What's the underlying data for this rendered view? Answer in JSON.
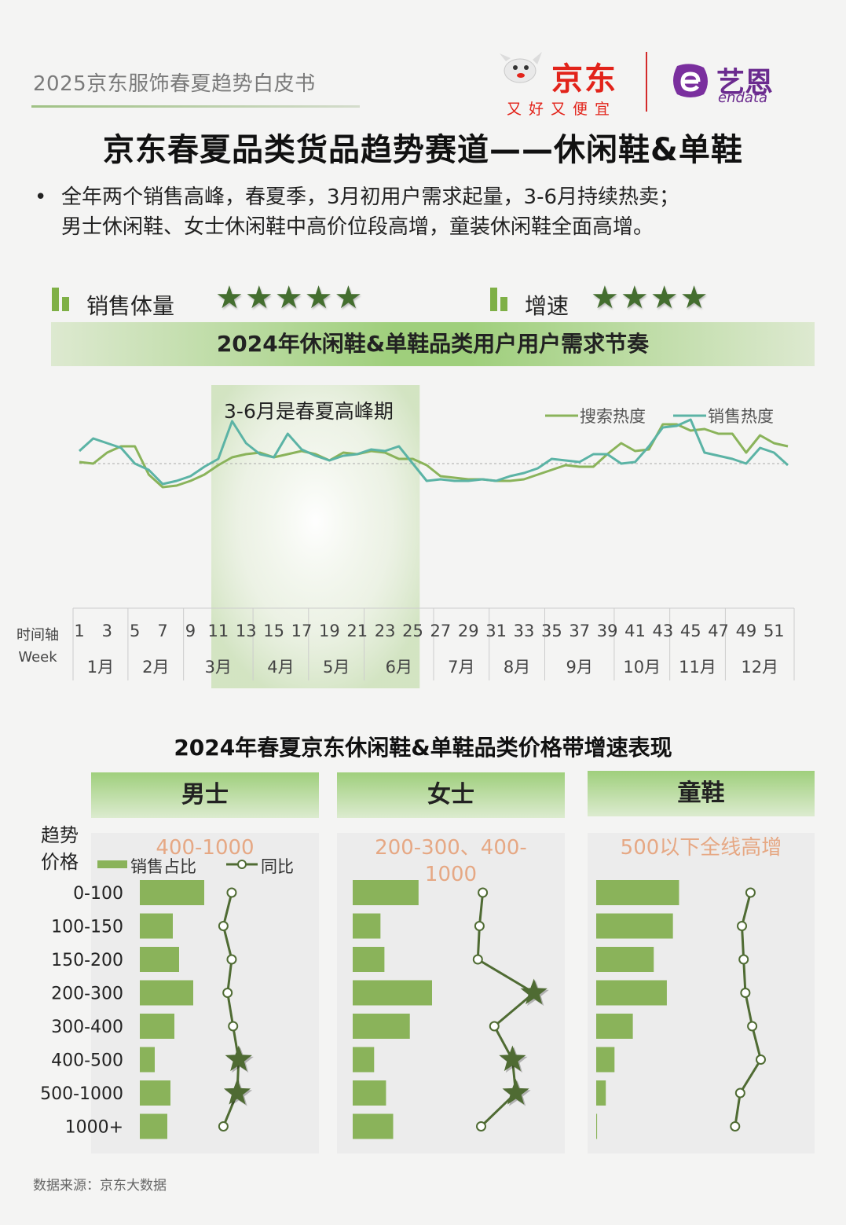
{
  "header": {
    "whitepaper_title": "2025京东服饰春夏趋势白皮书",
    "brand_jd": "京东",
    "brand_jd_slogan": "又好又便宜",
    "brand_endata_cn": "艺恩",
    "brand_endata_en": "endata"
  },
  "title": "京东春夏品类货品趋势赛道——休闲鞋&单鞋",
  "description": {
    "bullet": "•",
    "text": "全年两个销售高峰，春夏季，3月初用户需求起量，3-6月持续热卖；\n男士休闲鞋、女士休闲鞋中高价位段高增，童装休闲鞋全面高增。"
  },
  "metrics": [
    {
      "label": "销售体量",
      "stars": "★★★★★",
      "rating": 5
    },
    {
      "label": "增速",
      "stars": "★★★★",
      "rating": 4
    }
  ],
  "colors": {
    "search": "#8ab35a",
    "sales": "#5bb3a5",
    "bar": "#8ab35a",
    "yoy": "#4f6b33",
    "highlight": "#7cb657"
  },
  "chart_data": [
    {
      "type": "line",
      "title": "2024年休闲鞋&单鞋品类用户用户需求节奏",
      "annotation": "3-6月是春夏高峰期",
      "highlight_weeks": [
        11,
        25
      ],
      "axis_row_label": "时间轴",
      "axis_row_label_en": "Week",
      "x": [
        1,
        2,
        3,
        4,
        5,
        6,
        7,
        8,
        9,
        10,
        11,
        12,
        13,
        14,
        15,
        16,
        17,
        18,
        19,
        20,
        21,
        22,
        23,
        24,
        25,
        26,
        27,
        28,
        29,
        30,
        31,
        32,
        33,
        34,
        35,
        36,
        37,
        38,
        39,
        40,
        41,
        42,
        43,
        44,
        45,
        46,
        47,
        48,
        49,
        50,
        51,
        52
      ],
      "x_ticks": [
        "1",
        "3",
        "5",
        "7",
        "9",
        "11",
        "13",
        "15",
        "17",
        "19",
        "21",
        "23",
        "25",
        "27",
        "29",
        "31",
        "33",
        "35",
        "37",
        "39",
        "41",
        "43",
        "45",
        "47",
        "49",
        "51"
      ],
      "months": [
        "1月",
        "2月",
        "3月",
        "4月",
        "5月",
        "6月",
        "7月",
        "8月",
        "9月",
        "10月",
        "11月",
        "12月"
      ],
      "month_week_bounds": [
        [
          1,
          4
        ],
        [
          5,
          8
        ],
        [
          9,
          13
        ],
        [
          14,
          17
        ],
        [
          18,
          21
        ],
        [
          22,
          26
        ],
        [
          27,
          30
        ],
        [
          31,
          34
        ],
        [
          35,
          39
        ],
        [
          40,
          43
        ],
        [
          44,
          47
        ],
        [
          48,
          52
        ]
      ],
      "ylim": [
        0,
        100
      ],
      "baseline": 55,
      "series": [
        {
          "name": "搜索热度",
          "values": [
            56,
            55,
            62,
            66,
            66,
            48,
            40,
            41,
            44,
            48,
            54,
            59,
            61,
            62,
            59,
            61,
            63,
            61,
            57,
            62,
            61,
            63,
            62,
            58,
            58,
            54,
            47,
            46,
            45,
            45,
            44,
            44,
            45,
            48,
            51,
            54,
            53,
            53,
            61,
            68,
            63,
            64,
            80,
            80,
            76,
            77,
            74,
            74,
            62,
            73,
            68,
            66
          ]
        },
        {
          "name": "销售热度",
          "values": [
            63,
            71,
            68,
            65,
            55,
            51,
            42,
            44,
            47,
            53,
            58,
            82,
            68,
            61,
            59,
            74,
            64,
            60,
            57,
            60,
            61,
            64,
            63,
            66,
            55,
            44,
            45,
            44,
            44,
            45,
            44,
            47,
            49,
            52,
            58,
            57,
            56,
            61,
            61,
            55,
            56,
            66,
            78,
            79,
            83,
            62,
            60,
            58,
            55,
            65,
            62,
            54
          ]
        }
      ]
    },
    {
      "type": "bar",
      "section_title": "2024年春夏京东休闲鞋&单鞋品类价格带增速表现",
      "group": "男士",
      "trend": "400-1000",
      "row_header": "趋势\n价格",
      "legend": {
        "bar": "销售占比",
        "line": "同比"
      },
      "categories": [
        "0-100",
        "100-150",
        "150-200",
        "200-300",
        "300-400",
        "400-500",
        "500-1000",
        "1000+"
      ],
      "series": [
        {
          "name": "销售占比",
          "values": [
            82,
            42,
            50,
            68,
            44,
            19,
            39,
            35
          ]
        },
        {
          "name": "同比",
          "values": [
            46,
            40,
            46,
            43,
            47,
            51,
            50,
            40
          ]
        }
      ],
      "highlight_categories": [
        "400-500",
        "500-1000"
      ]
    },
    {
      "type": "bar",
      "group": "女士",
      "trend": "200-300、400-\n1000",
      "categories": [
        "0-100",
        "100-150",
        "150-200",
        "200-300",
        "300-400",
        "400-500",
        "500-1000",
        "1000+"
      ],
      "series": [
        {
          "name": "销售占比",
          "values": [
            83,
            35,
            40,
            100,
            72,
            27,
            42,
            51
          ]
        },
        {
          "name": "同比",
          "values": [
            56,
            54,
            53,
            87,
            63,
            74,
            76,
            55
          ]
        }
      ],
      "highlight_categories": [
        "200-300",
        "400-500",
        "500-1000"
      ]
    },
    {
      "type": "bar",
      "group": "童鞋",
      "trend": "500以下全线高增",
      "categories": [
        "0-100",
        "100-150",
        "150-200",
        "200-300",
        "300-400",
        "400-500",
        "500-1000",
        "1000+"
      ],
      "series": [
        {
          "name": "销售占比",
          "values": [
            95,
            88,
            66,
            81,
            42,
            21,
            11,
            1
          ]
        },
        {
          "name": "同比",
          "values": [
            69,
            64,
            65,
            66,
            70,
            75,
            63,
            60
          ]
        }
      ]
    }
  ],
  "source": "数据来源：京东大数据"
}
